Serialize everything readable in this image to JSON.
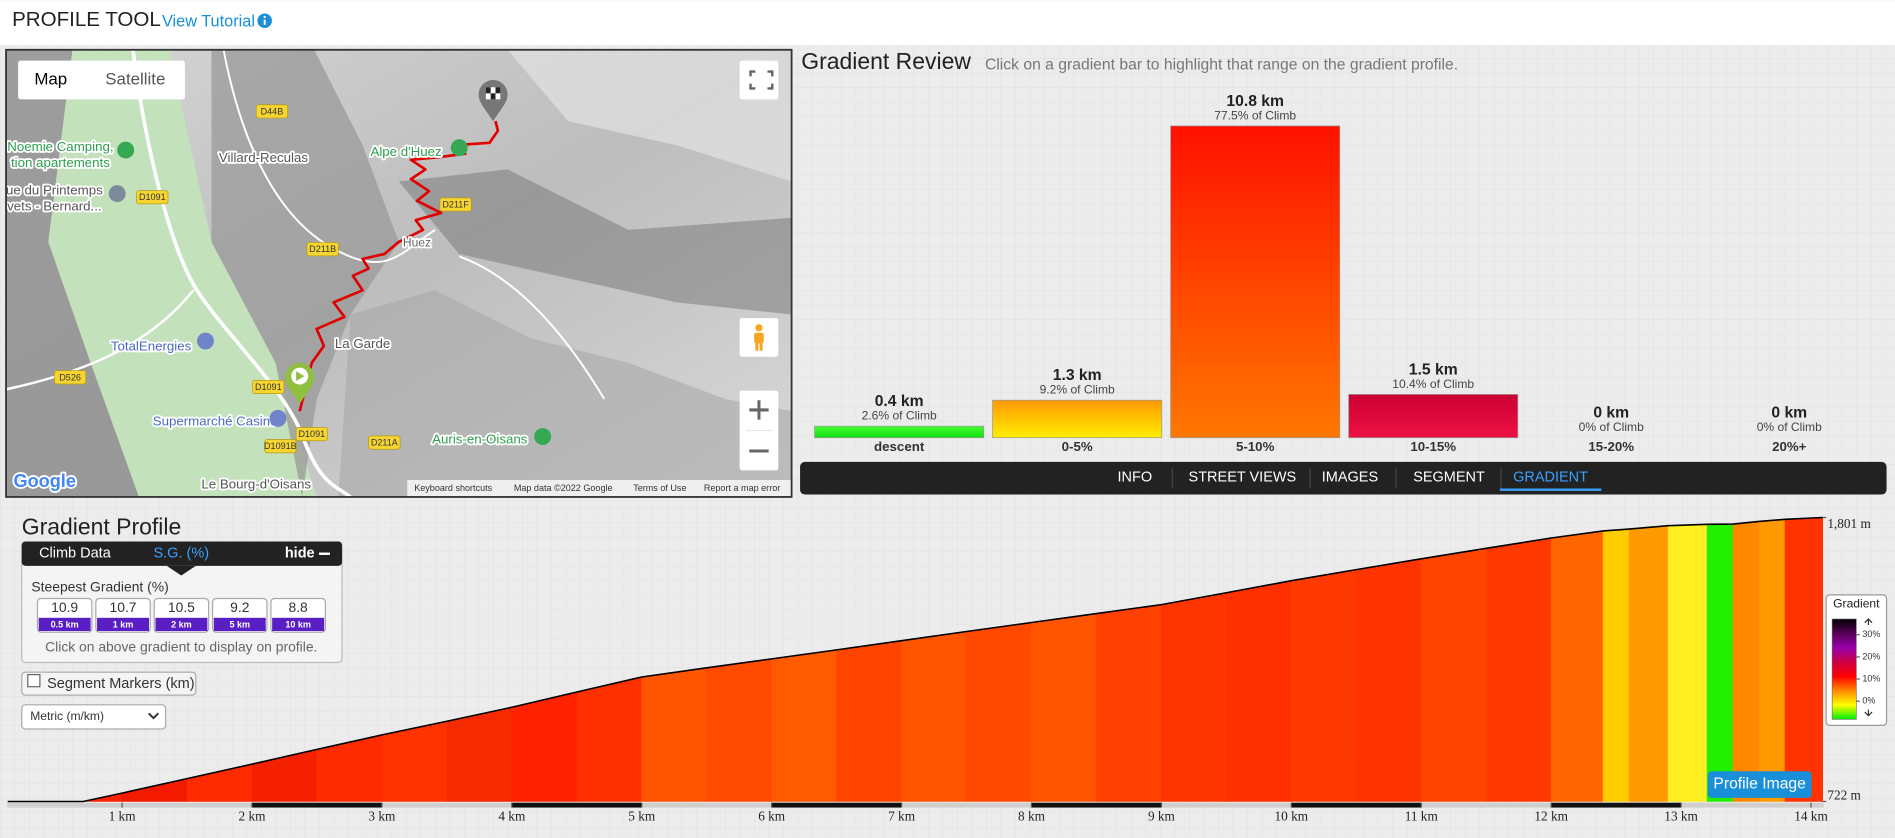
{
  "header": {
    "title": "PROFILE TOOL",
    "link": "View Tutorial"
  },
  "map": {
    "map_types": [
      "Map",
      "Satellite"
    ],
    "places": [
      "Villard-Reculas",
      "Alpe d'Huez",
      "Huez",
      "La Garde",
      "Auris-en-Oisans",
      "TotalEnergies",
      "Supermarché Casino",
      "Le Bourg-d'Oisans",
      "Noemie Camping,",
      "tion apartements",
      "ue du Printemps",
      "vets - Bernard..."
    ],
    "roads": [
      "D44B",
      "D1091",
      "D211F",
      "D211B",
      "D526",
      "D1091",
      "D1091",
      "D1091B",
      "D211A"
    ],
    "attribution": [
      "Keyboard shortcuts",
      "Map data ©2022 Google",
      "Terms of Use",
      "Report a map error"
    ],
    "logo": "Google"
  },
  "chart_data": [
    {
      "type": "bar",
      "title": "Gradient Review",
      "subtitle": "Click on a gradient bar to highlight that range on the gradient profile.",
      "categories": [
        "descent",
        "0-5%",
        "5-10%",
        "10-15%",
        "15-20%",
        "20%+"
      ],
      "values": [
        0.4,
        1.3,
        10.8,
        1.5,
        0,
        0
      ],
      "value_labels": [
        "0.4 km",
        "1.3 km",
        "10.8 km",
        "1.5 km",
        "0 km",
        "0 km"
      ],
      "share_labels": [
        "2.6% of Climb",
        "9.2% of Climb",
        "77.5% of Climb",
        "10.4% of Climb",
        "0% of Climb",
        "0% of Climb"
      ],
      "colors": [
        [
          "#44ff33",
          "#11dd11"
        ],
        [
          "#ff9900",
          "#ffee00"
        ],
        [
          "#ff1100",
          "#ff7700"
        ],
        [
          "#cc0033",
          "#ee1144"
        ],
        [
          "#880088",
          "#990099"
        ],
        [
          "#000000",
          "#111111"
        ]
      ],
      "ylim": [
        0,
        10.8
      ]
    },
    {
      "type": "area",
      "title": "Gradient Profile",
      "x": [
        0.12,
        0.7,
        1,
        1.5,
        2,
        2.5,
        3,
        3.5,
        4,
        4.5,
        5,
        5.5,
        6,
        6.5,
        7,
        7.5,
        8,
        8.5,
        9,
        9.5,
        10,
        10.5,
        11,
        11.5,
        12,
        12.4,
        12.6,
        12.9,
        13.2,
        13.4,
        13.6,
        13.8,
        14.09
      ],
      "series": [
        {
          "values": [
            722,
            722,
            754,
            809,
            864,
            920,
            975,
            1027,
            1080,
            1138,
            1195,
            1230,
            1264,
            1298,
            1333,
            1368,
            1402,
            1436,
            1470,
            1515,
            1561,
            1603,
            1644,
            1684,
            1723,
            1750,
            1757,
            1770,
            1775,
            1776,
            1786,
            1794,
            1801
          ],
          "colors": [
            "#ff3300",
            "#ff2200",
            "#f41a00",
            "#ff2a00",
            "#f52000",
            "#ff2a00",
            "#ff3300",
            "#f52a00",
            "#ff2200",
            "#ff3000",
            "#ff5500",
            "#ff4a00",
            "#ff5a00",
            "#ff4400",
            "#ff5500",
            "#ff4800",
            "#ff5500",
            "#ff4000",
            "#ff3500",
            "#ff3000",
            "#ff3a00",
            "#ff3300",
            "#ff4400",
            "#ff3a00",
            "#ff6600",
            "#ffcc00",
            "#ff9900",
            "#ffee22",
            "#22ee00",
            "#ff8800",
            "#ff9900",
            "#ff3300"
          ],
          "line_color": "#000000"
        }
      ],
      "xlim": [
        0,
        14.1
      ],
      "ylim": [
        722,
        1801
      ],
      "xticks": [
        {
          "value": 1,
          "label": "1 km"
        },
        {
          "value": 2,
          "label": "2 km"
        },
        {
          "value": 3,
          "label": "3 km"
        },
        {
          "value": 4,
          "label": "4 km"
        },
        {
          "value": 5,
          "label": "5 km"
        },
        {
          "value": 6,
          "label": "6 km"
        },
        {
          "value": 7,
          "label": "7 km"
        },
        {
          "value": 8,
          "label": "8 km"
        },
        {
          "value": 9,
          "label": "9 km"
        },
        {
          "value": 10,
          "label": "10 km"
        },
        {
          "value": 11,
          "label": "11 km"
        },
        {
          "value": 12,
          "label": "12 km"
        },
        {
          "value": 13,
          "label": "13 km"
        },
        {
          "value": 14,
          "label": "14 km"
        }
      ],
      "yticks": [
        {
          "value": 722,
          "label": "722 m"
        },
        {
          "value": 1801,
          "label": "1,801 m"
        }
      ]
    }
  ],
  "tabs": {
    "items": [
      "INFO",
      "STREET VIEWS",
      "IMAGES",
      "SEGMENT",
      "GRADIENT"
    ],
    "active": 4
  },
  "climb_panel": {
    "tabs": [
      "Climb Data",
      "S.G. (%)"
    ],
    "hide": "hide",
    "heading": "Steepest Gradient (%)",
    "values": [
      10.9,
      10.7,
      10.5,
      9.2,
      8.8
    ],
    "distances": [
      "0.5 km",
      "1 km",
      "2 km",
      "5 km",
      "10 km"
    ],
    "hint": "Click on above gradient to display on profile."
  },
  "segment_markers": "Segment Markers (km)",
  "units_select": "Metric (m/km)",
  "profile_button": "Profile Image",
  "legend": {
    "title": "Gradient",
    "ticks": [
      {
        "value": 30,
        "label": "30%"
      },
      {
        "value": 20,
        "label": "20%"
      },
      {
        "value": 10,
        "label": "10%"
      },
      {
        "value": 0,
        "label": "0%"
      }
    ],
    "colors": [
      "#000000",
      "#550055",
      "#9900aa",
      "#cc0044",
      "#ff0000",
      "#ff8800",
      "#ffff00",
      "#00ee00"
    ]
  }
}
